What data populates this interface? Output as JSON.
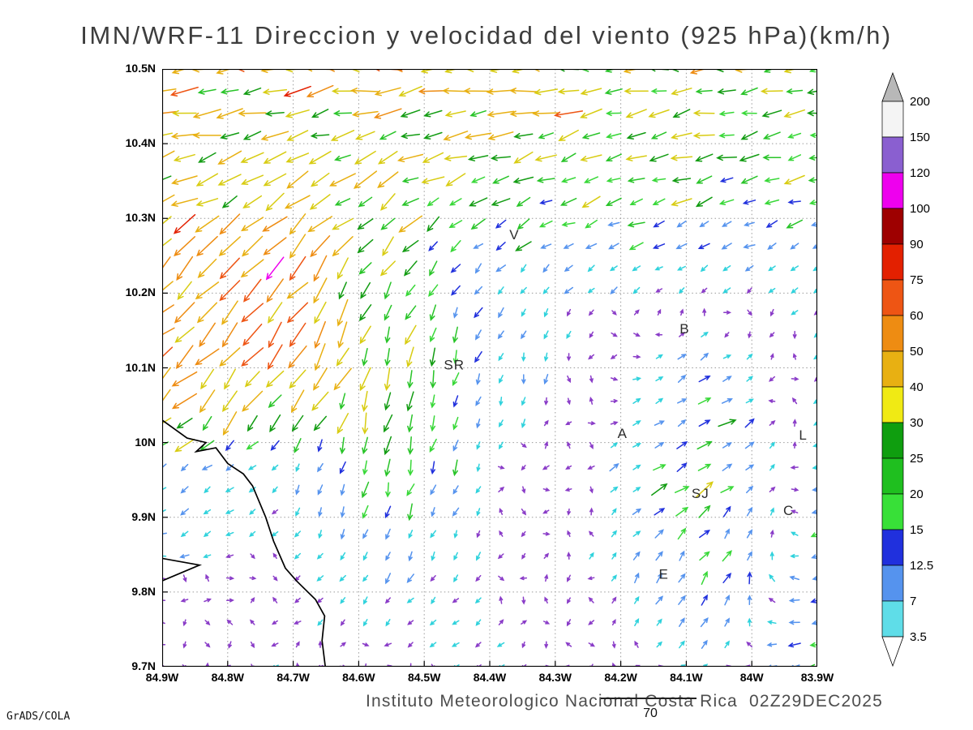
{
  "chart_data": {
    "type": "vector_field",
    "title": "IMN/WRF-11 Direccion y velocidad del viento (925 hPa)(km/h)",
    "model": "IMN/WRF-11",
    "variable": "Direccion y velocidad del viento",
    "level": "925 hPa",
    "units": "km/h",
    "xlim": [
      -84.9,
      -83.9
    ],
    "ylim": [
      9.7,
      10.5
    ],
    "grid_style": "dotted 0.1 degree",
    "lon_tick_labels": [
      "84.9W",
      "84.8W",
      "84.7W",
      "84.6W",
      "84.5W",
      "84.4W",
      "84.3W",
      "84.2W",
      "84.1W",
      "84W",
      "83.9W"
    ],
    "lat_tick_labels": [
      "10.5N",
      "10.4N",
      "10.3N",
      "10.2N",
      "10.1N",
      "10N",
      "9.9N",
      "9.8N",
      "9.7N"
    ],
    "colorbar": {
      "levels": [
        "200",
        "150",
        "120",
        "100",
        "90",
        "75",
        "60",
        "50",
        "40",
        "30",
        "25",
        "20",
        "15",
        "12.5",
        "7",
        "3.5"
      ],
      "band_colors": [
        "#f4f4f4",
        "#8a5fd0",
        "#ee00ee",
        "#9e0000",
        "#e32000",
        "#ee5514",
        "#ee8c12",
        "#e8b012",
        "#f0ea14",
        "#0f9e0f",
        "#1fbf1f",
        "#38e038",
        "#2030dd",
        "#5593ee",
        "#5fdde8"
      ],
      "above_color": "#b8b8b8",
      "below_color": "#ffffff"
    },
    "speed_colors": [
      [
        3.5,
        "#8a3cc8"
      ],
      [
        7,
        "#2fd2dc"
      ],
      [
        12.5,
        "#5593ee"
      ],
      [
        15,
        "#2030dd"
      ],
      [
        20,
        "#38d838"
      ],
      [
        25,
        "#28c428"
      ],
      [
        30,
        "#129c12"
      ],
      [
        40,
        "#d8cc12"
      ],
      [
        50,
        "#e8b012"
      ],
      [
        60,
        "#ee8c12"
      ],
      [
        75,
        "#ee5514"
      ],
      [
        90,
        "#e32000"
      ],
      [
        100,
        "#9e0000"
      ],
      [
        120,
        "#ee00ee"
      ],
      [
        150,
        "#8a5fd0"
      ],
      [
        100000,
        "#e0e0e0"
      ]
    ],
    "wind_field": {
      "lons": [
        -84.9,
        -84.73,
        -84.57,
        -84.4,
        -84.23,
        -84.07,
        -83.9
      ],
      "lats": [
        9.7,
        9.83,
        9.97,
        10.1,
        10.23,
        10.37,
        10.5
      ],
      "u": [
        [
          -2,
          -3,
          -2,
          -3,
          -2,
          4,
          -16
        ],
        [
          -3,
          -2,
          -3,
          -2,
          2,
          10,
          -10
        ],
        [
          -10,
          -3,
          -6,
          -2,
          3,
          16,
          -5
        ],
        [
          -40,
          -32,
          -10,
          -3,
          2,
          8,
          -3
        ],
        [
          -32,
          -42,
          -14,
          -6,
          -4,
          -5,
          -4
        ],
        [
          -34,
          -30,
          -26,
          -27,
          -25,
          -22,
          -20
        ],
        [
          -36,
          -39,
          -40,
          -37,
          -32,
          -28,
          -26
        ]
      ],
      "v": [
        [
          0,
          -1,
          -1,
          -2,
          -1,
          3,
          -3
        ],
        [
          1,
          -2,
          -5,
          -2,
          3,
          14,
          -2
        ],
        [
          -8,
          -2,
          -22,
          -3,
          2,
          10,
          -2
        ],
        [
          -36,
          -40,
          -34,
          -8,
          -2,
          6,
          -2
        ],
        [
          -30,
          -46,
          -24,
          -7,
          -3,
          -4,
          -3
        ],
        [
          -9,
          -12,
          -12,
          -10,
          -8,
          -6,
          -5
        ],
        [
          -4,
          -5,
          -6,
          -6,
          -5,
          -4,
          -3
        ]
      ]
    },
    "sample_grid": {
      "cols": 30,
      "rows": 28,
      "seed": 20251229
    },
    "cities": [
      {
        "label": "V",
        "lon": -84.37,
        "lat": 10.272
      },
      {
        "label": "B",
        "lon": -84.11,
        "lat": 10.146
      },
      {
        "label": "SR",
        "lon": -84.47,
        "lat": 10.098
      },
      {
        "label": "A",
        "lon": -84.205,
        "lat": 10.006
      },
      {
        "label": "SJ",
        "lon": -84.092,
        "lat": 9.926
      },
      {
        "label": "C",
        "lon": -83.952,
        "lat": 9.903
      },
      {
        "label": "E",
        "lon": -84.142,
        "lat": 9.818
      },
      {
        "label": "L",
        "lon": -83.928,
        "lat": 10.004
      }
    ],
    "coastline": [
      [
        -84.9,
        10.03
      ],
      [
        -84.862,
        10.006
      ],
      [
        -84.833,
        10.0
      ],
      [
        -84.848,
        9.988
      ],
      [
        -84.818,
        9.993
      ],
      [
        -84.8,
        9.972
      ],
      [
        -84.776,
        9.958
      ],
      [
        -84.762,
        9.942
      ],
      [
        -84.742,
        9.9
      ],
      [
        -84.73,
        9.868
      ],
      [
        -84.712,
        9.832
      ],
      [
        -84.695,
        9.815
      ],
      [
        -84.666,
        9.79
      ],
      [
        -84.652,
        9.768
      ],
      [
        -84.656,
        9.735
      ],
      [
        -84.651,
        9.7
      ]
    ],
    "peninsula": [
      [
        -84.9,
        9.845
      ],
      [
        -84.843,
        9.836
      ],
      [
        -84.9,
        9.815
      ]
    ]
  },
  "annotations": {
    "footer": "Instituto Meteorologico Nacional Costa Rica  02Z29DEC2025",
    "station_value": "70",
    "credit": "GrADS/COLA"
  }
}
